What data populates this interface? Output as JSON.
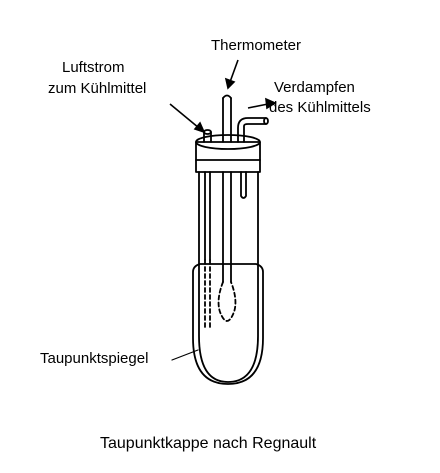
{
  "labels": {
    "thermometer": "Thermometer",
    "luftstrom_line1": "Luftstrom",
    "luftstrom_line2": "zum Kühlmittel",
    "verdampfen_line1": "Verdampfen",
    "verdampfen_line2": "des Kühlmittels",
    "spiegel": "Taupunktspiegel"
  },
  "caption": "Taupunktkappe nach Regnault",
  "colors": {
    "ink": "#000000",
    "background": "#ffffff"
  }
}
